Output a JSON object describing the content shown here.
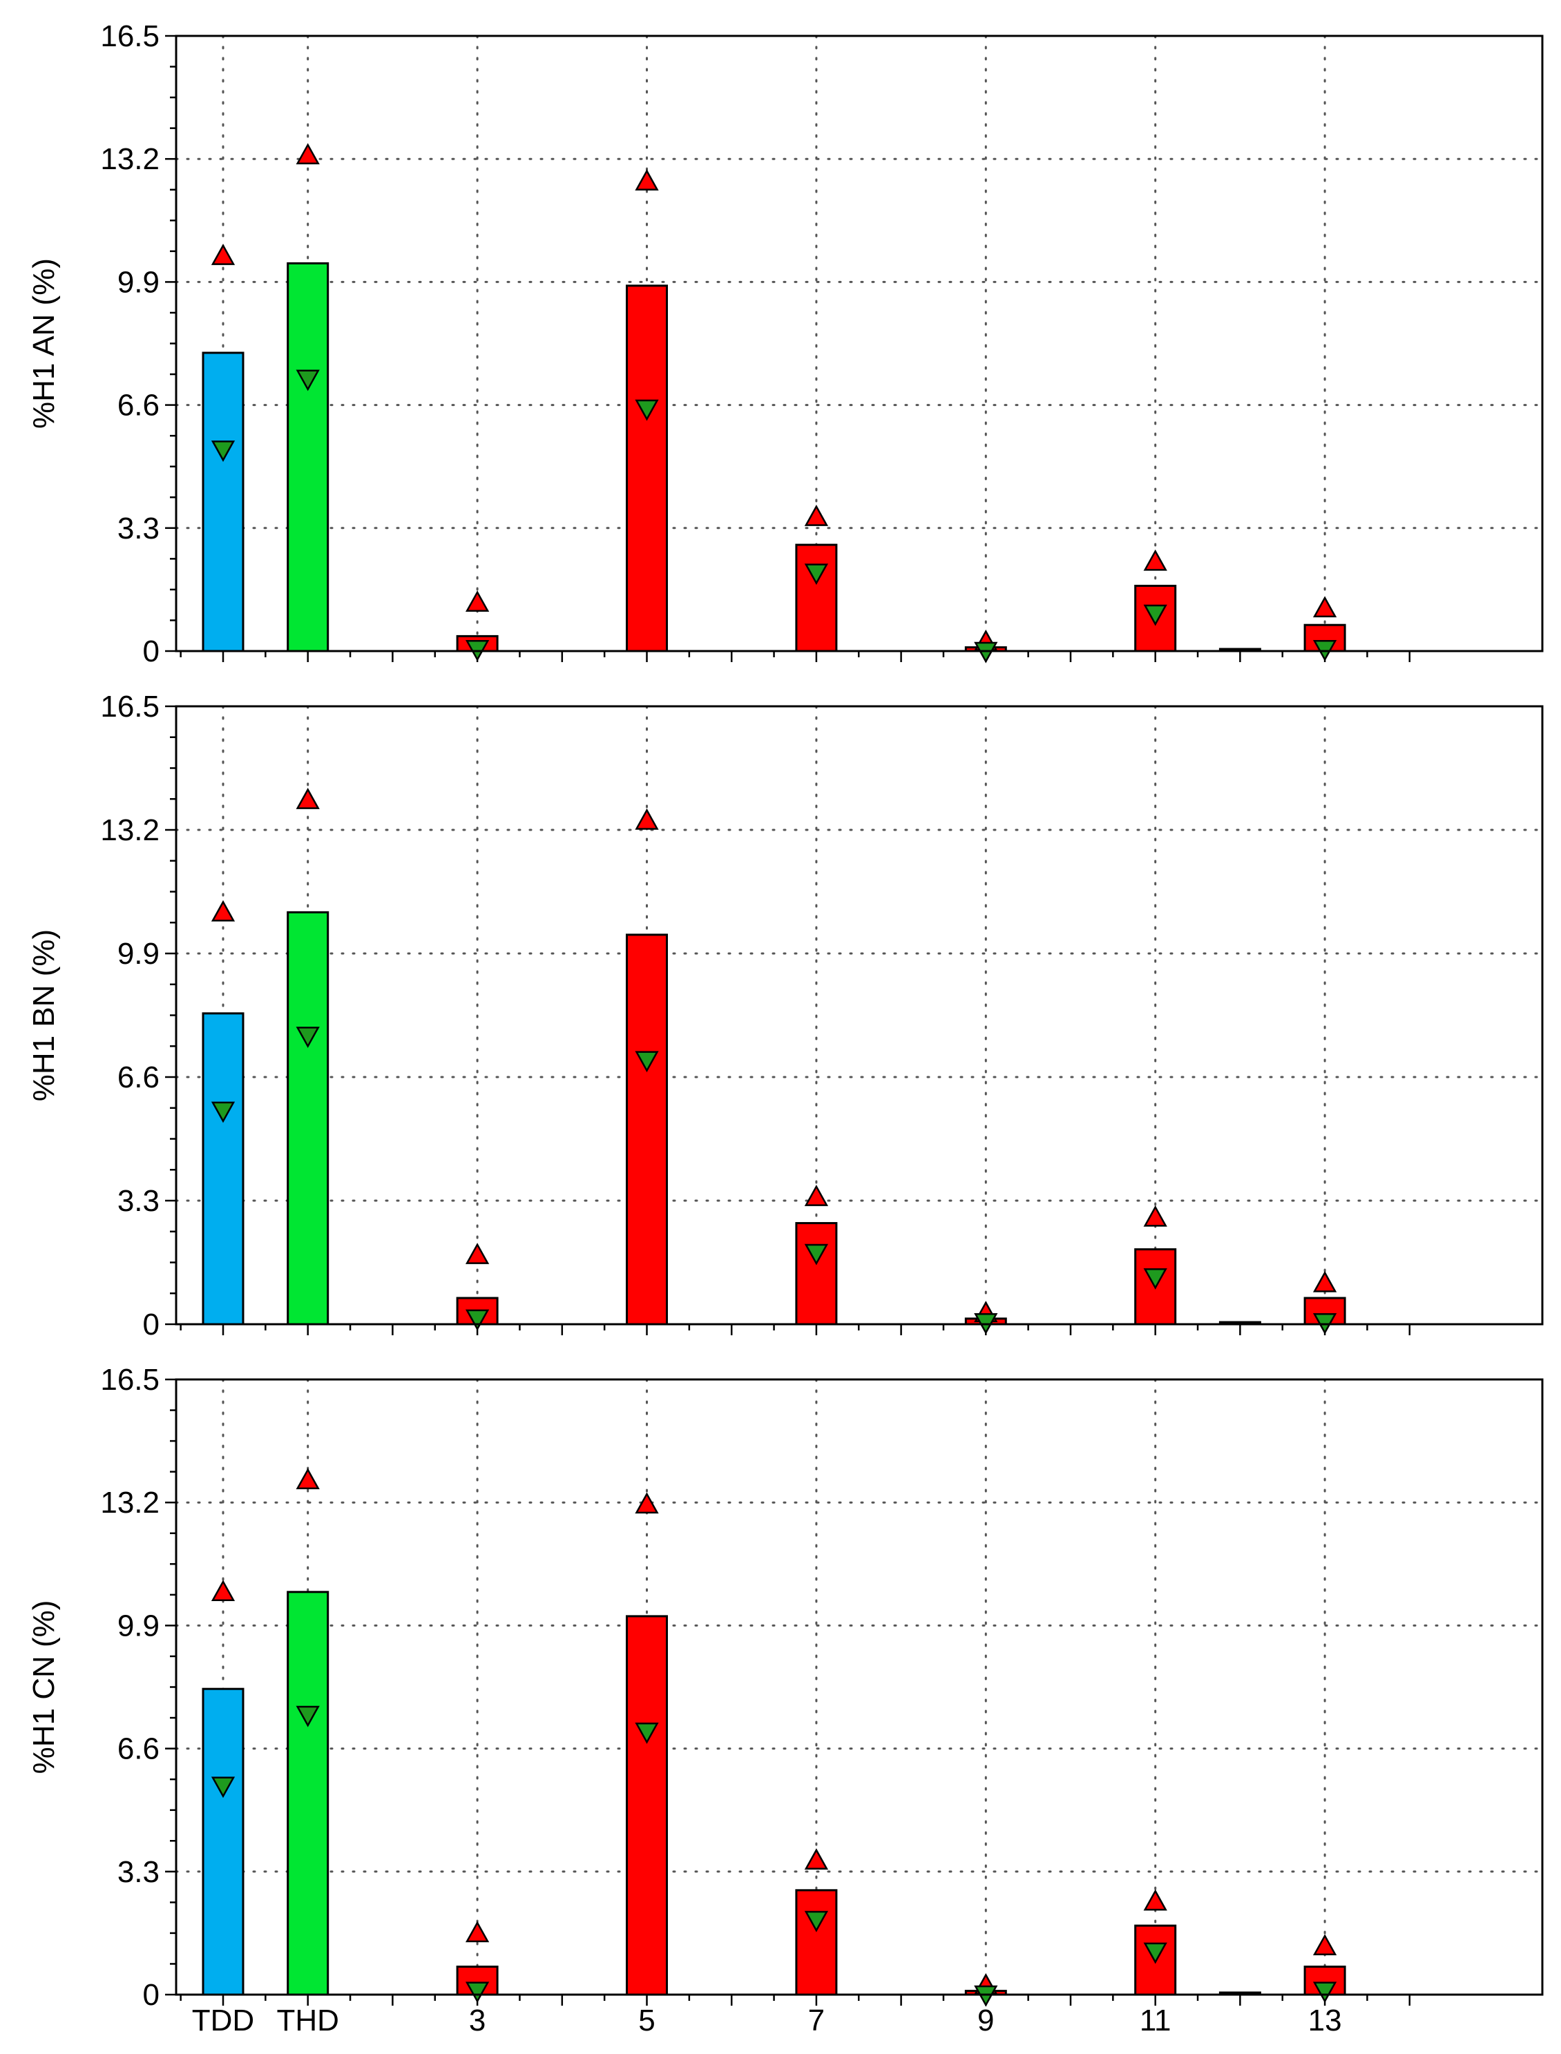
{
  "chart_data": [
    {
      "type": "bar",
      "ylabel": "%H1 AN (%)",
      "ylim": [
        0,
        16.5
      ],
      "yticks": [
        "0",
        "3.3",
        "6.6",
        "9.9",
        "13.2",
        "16.5"
      ],
      "grid": true,
      "bars": [
        {
          "x": 0,
          "value": 8.0,
          "max": 10.6,
          "min": 5.4,
          "color": "#00aeef"
        },
        {
          "x": 1,
          "value": 10.4,
          "max": 13.3,
          "min": 7.3,
          "color": "#00e632"
        },
        {
          "x": 3,
          "value": 0.4,
          "max": 1.3,
          "min": 0.05,
          "color": "#ff0000"
        },
        {
          "x": 5,
          "value": 9.8,
          "max": 12.6,
          "min": 6.5,
          "color": "#ff0000"
        },
        {
          "x": 7,
          "value": 2.85,
          "max": 3.6,
          "min": 2.1,
          "color": "#ff0000"
        },
        {
          "x": 9,
          "value": 0.1,
          "max": 0.25,
          "min": 0.0,
          "color": "#ff0000"
        },
        {
          "x": 11,
          "value": 1.75,
          "max": 2.4,
          "min": 1.0,
          "color": "#ff0000"
        },
        {
          "x": 12,
          "value": 0.05,
          "max": null,
          "min": null,
          "color": "#ff0000"
        },
        {
          "x": 13,
          "value": 0.7,
          "max": 1.15,
          "min": 0.05,
          "color": "#ff0000"
        }
      ]
    },
    {
      "type": "bar",
      "ylabel": "%H1 BN (%)",
      "ylim": [
        0,
        16.5
      ],
      "yticks": [
        "0",
        "3.3",
        "6.6",
        "9.9",
        "13.2",
        "16.5"
      ],
      "grid": true,
      "bars": [
        {
          "x": 0,
          "value": 8.3,
          "max": 11.0,
          "min": 5.7,
          "color": "#00aeef"
        },
        {
          "x": 1,
          "value": 11.0,
          "max": 14.0,
          "min": 7.7,
          "color": "#00e632"
        },
        {
          "x": 3,
          "value": 0.7,
          "max": 1.85,
          "min": 0.15,
          "color": "#ff0000"
        },
        {
          "x": 5,
          "value": 10.4,
          "max": 13.45,
          "min": 7.05,
          "color": "#ff0000"
        },
        {
          "x": 7,
          "value": 2.7,
          "max": 3.4,
          "min": 1.9,
          "color": "#ff0000"
        },
        {
          "x": 9,
          "value": 0.15,
          "max": 0.3,
          "min": 0.05,
          "color": "#ff0000"
        },
        {
          "x": 11,
          "value": 2.0,
          "max": 2.85,
          "min": 1.25,
          "color": "#ff0000"
        },
        {
          "x": 12,
          "value": 0.05,
          "max": null,
          "min": null,
          "color": "#ff0000"
        },
        {
          "x": 13,
          "value": 0.7,
          "max": 1.1,
          "min": 0.05,
          "color": "#ff0000"
        }
      ]
    },
    {
      "type": "bar",
      "ylabel": "%H1 CN (%)",
      "ylim": [
        0,
        16.5
      ],
      "yticks": [
        "0",
        "3.3",
        "6.6",
        "9.9",
        "13.2",
        "16.5"
      ],
      "grid": true,
      "xtick_labels": [
        {
          "x": 0,
          "label": "TDD"
        },
        {
          "x": 1,
          "label": "THD"
        },
        {
          "x": 3,
          "label": "3"
        },
        {
          "x": 5,
          "label": "5"
        },
        {
          "x": 7,
          "label": "7"
        },
        {
          "x": 9,
          "label": "9"
        },
        {
          "x": 11,
          "label": "11"
        },
        {
          "x": 13,
          "label": "13"
        }
      ],
      "bars": [
        {
          "x": 0,
          "value": 8.2,
          "max": 10.8,
          "min": 5.6,
          "color": "#00aeef"
        },
        {
          "x": 1,
          "value": 10.8,
          "max": 13.8,
          "min": 7.5,
          "color": "#00e632"
        },
        {
          "x": 3,
          "value": 0.75,
          "max": 1.65,
          "min": 0.1,
          "color": "#ff0000"
        },
        {
          "x": 5,
          "value": 10.15,
          "max": 13.15,
          "min": 7.05,
          "color": "#ff0000"
        },
        {
          "x": 7,
          "value": 2.8,
          "max": 3.6,
          "min": 2.0,
          "color": "#ff0000"
        },
        {
          "x": 9,
          "value": 0.1,
          "max": 0.25,
          "min": 0.0,
          "color": "#ff0000"
        },
        {
          "x": 11,
          "value": 1.85,
          "max": 2.5,
          "min": 1.15,
          "color": "#ff0000"
        },
        {
          "x": 12,
          "value": 0.05,
          "max": null,
          "min": null,
          "color": "#ff0000"
        },
        {
          "x": 13,
          "value": 0.75,
          "max": 1.3,
          "min": 0.1,
          "color": "#ff0000"
        }
      ]
    }
  ]
}
